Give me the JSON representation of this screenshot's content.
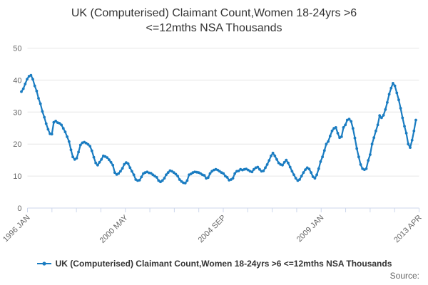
{
  "title": "UK (Computerised) Claimant Count,Women 18-24yrs >6 <=12mths NSA Thousands",
  "legend": {
    "label": "UK (Computerised) Claimant Count,Women 18-24yrs >6 <=12mths NSA Thousands"
  },
  "source_label": "Source:",
  "colors": {
    "line": "#1a7cc1",
    "grid": "#e6e6e6",
    "axis": "#ccd6eb",
    "tick": "#ccd6eb",
    "label": "#666666",
    "title": "#333333"
  },
  "chart_data": {
    "type": "line",
    "title": "UK (Computerised) Claimant Count,Women 18-24yrs >6 <=12mths NSA Thousands",
    "xlabel": "",
    "ylabel": "",
    "x_unit": "monthly",
    "x_range": [
      "1996 JAN",
      "2013 APR"
    ],
    "x_tick_labels": [
      "1996 JAN",
      "2000 MAY",
      "2004 SEP",
      "2009 JAN",
      "2013 APR"
    ],
    "y_ticks": [
      0,
      10,
      20,
      30,
      40,
      50
    ],
    "ylim": [
      0,
      50
    ],
    "grid": "horizontal",
    "legend_position": "bottom",
    "series": [
      {
        "name": "UK (Computerised) Claimant Count,Women 18-24yrs >6 <=12mths NSA Thousands",
        "values": [
          36.4,
          37.3,
          38.8,
          40.3,
          41.2,
          41.5,
          40.3,
          38.2,
          36.6,
          34.3,
          32.6,
          30.2,
          28.4,
          26.4,
          24.6,
          23.2,
          23.1,
          26.8,
          27.2,
          26.7,
          26.5,
          26.0,
          24.9,
          23.8,
          22.3,
          20.8,
          18.2,
          16.0,
          15.2,
          15.6,
          17.5,
          19.7,
          20.4,
          20.6,
          20.3,
          19.9,
          19.3,
          17.9,
          15.9,
          14.1,
          13.4,
          14.3,
          15.2,
          16.3,
          16.1,
          15.8,
          15.1,
          14.3,
          13.4,
          11.1,
          10.5,
          10.8,
          11.5,
          12.4,
          13.7,
          14.2,
          13.9,
          12.6,
          11.5,
          10.4,
          8.9,
          8.6,
          8.7,
          9.7,
          10.8,
          11.1,
          11.3,
          11.0,
          10.9,
          10.4,
          10.0,
          9.6,
          8.6,
          8.2,
          8.6,
          9.3,
          10.4,
          11.1,
          11.7,
          11.5,
          11.1,
          10.6,
          10.0,
          8.9,
          8.3,
          7.9,
          7.8,
          8.6,
          10.4,
          10.7,
          11.1,
          11.3,
          11.2,
          11.1,
          10.8,
          10.4,
          10.2,
          9.3,
          9.5,
          10.8,
          11.5,
          11.9,
          12.1,
          11.9,
          11.5,
          11.1,
          10.8,
          10.0,
          9.6,
          8.7,
          8.9,
          9.3,
          10.8,
          11.5,
          11.6,
          12.1,
          11.9,
          12.1,
          12.2,
          11.9,
          11.5,
          11.3,
          12.1,
          12.6,
          12.8,
          12.1,
          11.5,
          11.6,
          12.6,
          13.6,
          14.9,
          16.3,
          17.2,
          16.3,
          15.2,
          14.1,
          13.6,
          13.4,
          14.3,
          15.0,
          14.1,
          12.8,
          11.5,
          10.4,
          9.3,
          8.6,
          8.9,
          10.0,
          11.1,
          12.0,
          12.6,
          12.2,
          11.1,
          9.8,
          9.3,
          10.4,
          12.3,
          14.5,
          16.0,
          18.0,
          20.0,
          20.8,
          22.5,
          24.1,
          24.9,
          25.2,
          23.4,
          22.0,
          22.3,
          25.2,
          26.0,
          27.5,
          27.8,
          27.1,
          24.9,
          21.9,
          18.6,
          16.0,
          13.6,
          12.3,
          12.0,
          12.3,
          14.9,
          16.7,
          20.0,
          22.0,
          24.1,
          26.0,
          28.9,
          28.2,
          29.0,
          30.8,
          33.0,
          35.6,
          37.5,
          39.0,
          38.2,
          36.0,
          33.8,
          31.2,
          28.2,
          25.6,
          23.4,
          20.0,
          18.9,
          21.2,
          24.1,
          27.5
        ]
      }
    ]
  }
}
